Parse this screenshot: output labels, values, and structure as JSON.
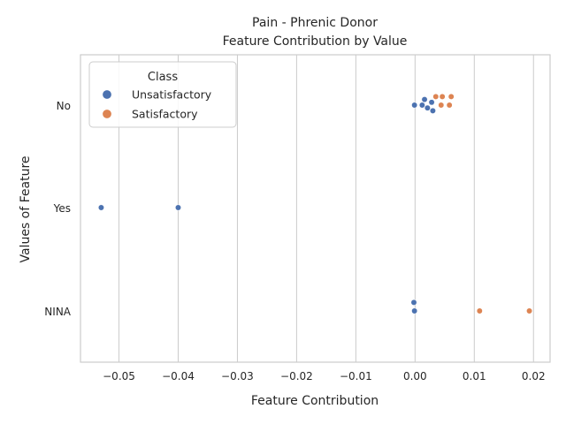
{
  "chart_data": {
    "type": "scatter",
    "title": "Pain - Phrenic Donor",
    "subtitle": "Feature Contribution by Value",
    "xlabel": "Feature Contribution",
    "ylabel": "Values of Feature",
    "xlim": [
      -0.0565,
      0.0228
    ],
    "x_ticks": [
      -0.05,
      -0.04,
      -0.03,
      -0.02,
      -0.01,
      0.0,
      0.01,
      0.02
    ],
    "x_tick_labels": [
      "−0.05",
      "−0.04",
      "−0.03",
      "−0.02",
      "−0.01",
      "0.00",
      "0.01",
      "0.02"
    ],
    "categories": [
      "No",
      "Yes",
      "NINA"
    ],
    "grid": "vertical",
    "legend": {
      "title": "Class",
      "placement": "top-left",
      "entries": [
        {
          "label": "Unsatisfactory",
          "color": "#4c72b0"
        },
        {
          "label": "Satisfactory",
          "color": "#dd8452"
        }
      ]
    },
    "series": [
      {
        "name": "Unsatisfactory",
        "color": "#4c72b0",
        "points": [
          {
            "category": "No",
            "x": -0.0001
          },
          {
            "category": "No",
            "x": 0.0012
          },
          {
            "category": "No",
            "x": 0.0016
          },
          {
            "category": "No",
            "x": 0.0021
          },
          {
            "category": "No",
            "x": 0.0028
          },
          {
            "category": "No",
            "x": 0.003
          },
          {
            "category": "Yes",
            "x": -0.053
          },
          {
            "category": "Yes",
            "x": -0.04
          },
          {
            "category": "NINA",
            "x": -0.0001
          },
          {
            "category": "NINA",
            "x": -0.0002
          }
        ]
      },
      {
        "name": "Satisfactory",
        "color": "#dd8452",
        "points": [
          {
            "category": "No",
            "x": 0.0035
          },
          {
            "category": "No",
            "x": 0.0044
          },
          {
            "category": "No",
            "x": 0.0046
          },
          {
            "category": "No",
            "x": 0.0058
          },
          {
            "category": "No",
            "x": 0.0061
          },
          {
            "category": "NINA",
            "x": 0.0109
          },
          {
            "category": "NINA",
            "x": 0.0193
          }
        ]
      }
    ]
  }
}
